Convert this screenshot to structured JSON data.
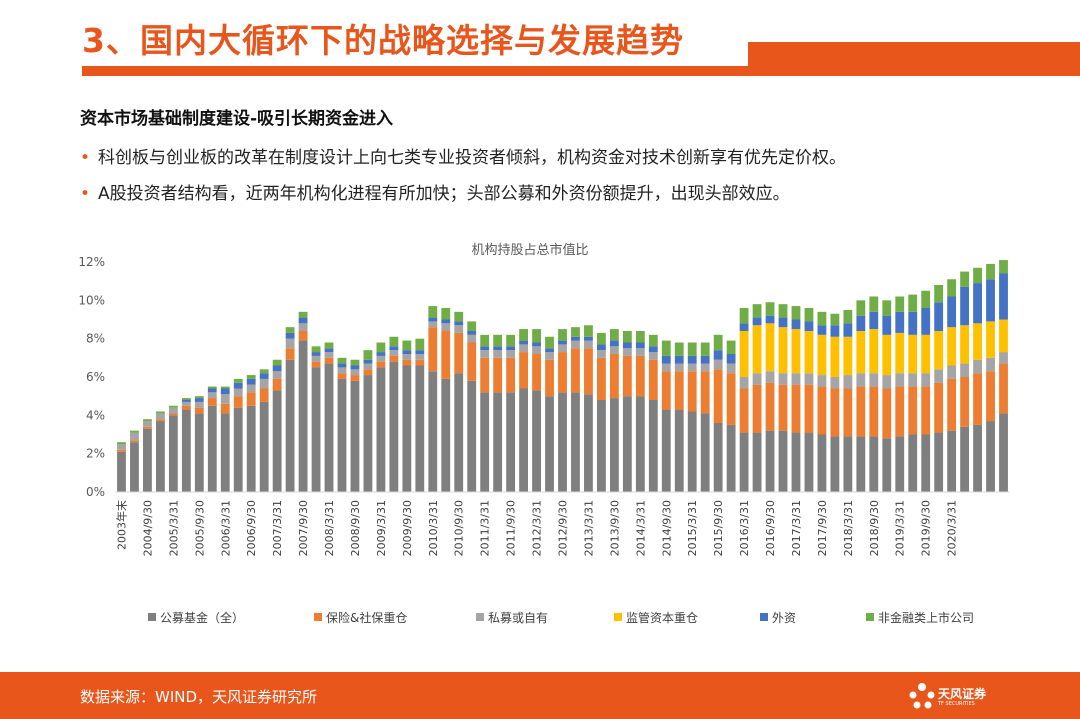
{
  "header": {
    "title": "3、国内大循环下的战略选择与发展趋势"
  },
  "section": {
    "subhead": "资本市场基础制度建设-吸引长期资金进入",
    "bullets": [
      "科创板与创业板的改革在制度设计上向七类专业投资者倾斜，机构资金对技术创新享有优先定价权。",
      "A股投资者结构看，近两年机构化进程有所加快；头部公募和外资份额提升，出现头部效应。"
    ]
  },
  "chart_data": {
    "type": "bar",
    "stacked": true,
    "title": "机构持股占总市值比",
    "ylim": [
      0,
      12
    ],
    "yticks": [
      "0%",
      "2%",
      "4%",
      "6%",
      "8%",
      "10%",
      "12%"
    ],
    "legend_position": "bottom",
    "x_tick_labels": [
      "2003年末",
      "2004/9/30",
      "2005/3/31",
      "2005/9/30",
      "2006/3/31",
      "2006/9/30",
      "2007/3/31",
      "2007/9/30",
      "2008/3/31",
      "2008/9/30",
      "2009/3/31",
      "2009/9/30",
      "2010/3/31",
      "2010/9/30",
      "2011/3/31",
      "2011/9/30",
      "2012/3/31",
      "2012/9/30",
      "2013/3/31",
      "2013/9/30",
      "2014/3/31",
      "2014/9/30",
      "2015/3/31",
      "2015/9/30",
      "2016/3/31",
      "2016/9/30",
      "2017/3/31",
      "2017/9/30",
      "2018/3/31",
      "2018/9/30",
      "2019/3/31",
      "2019/9/30",
      "2020/3/31"
    ],
    "series": [
      {
        "name": "公募基金（全）",
        "color": "#7f7f7f",
        "values": [
          2.1,
          2.6,
          3.3,
          3.7,
          4.0,
          4.3,
          4.1,
          4.5,
          4.1,
          4.4,
          4.5,
          4.7,
          5.3,
          6.9,
          7.9,
          6.5,
          6.7,
          5.9,
          5.8,
          6.1,
          6.5,
          6.8,
          6.6,
          6.6,
          6.3,
          5.9,
          6.2,
          5.8,
          5.2,
          5.2,
          5.2,
          5.4,
          5.3,
          5.0,
          5.2,
          5.2,
          5.1,
          4.8,
          4.9,
          5.0,
          5.0,
          4.8,
          4.3,
          4.3,
          4.2,
          4.1,
          3.6,
          3.5,
          3.1,
          3.1,
          3.2,
          3.2,
          3.1,
          3.1,
          3.0,
          2.9,
          2.9,
          2.9,
          2.9,
          2.8,
          2.9,
          3.0,
          3.0,
          3.1,
          3.2,
          3.4,
          3.5,
          3.7,
          4.1
        ]
      },
      {
        "name": "保险&社保重仓",
        "color": "#ed7d31",
        "values": [
          0.1,
          0.1,
          0.1,
          0.1,
          0.1,
          0.2,
          0.3,
          0.4,
          0.5,
          0.6,
          0.7,
          0.7,
          0.6,
          0.6,
          0.5,
          0.3,
          0.3,
          0.3,
          0.3,
          0.3,
          0.3,
          0.3,
          0.3,
          0.3,
          2.3,
          2.5,
          2.1,
          2.0,
          1.8,
          1.8,
          1.8,
          1.9,
          1.9,
          1.9,
          2.1,
          2.3,
          2.4,
          2.2,
          2.3,
          2.1,
          2.1,
          2.1,
          2.0,
          2.0,
          2.1,
          2.2,
          2.8,
          2.7,
          2.3,
          2.5,
          2.5,
          2.4,
          2.5,
          2.5,
          2.5,
          2.5,
          2.5,
          2.6,
          2.6,
          2.6,
          2.6,
          2.5,
          2.5,
          2.6,
          2.7,
          2.6,
          2.7,
          2.6,
          2.6
        ]
      },
      {
        "name": "私募或自有",
        "color": "#a5a5a5",
        "values": [
          0.3,
          0.4,
          0.3,
          0.3,
          0.3,
          0.2,
          0.3,
          0.3,
          0.5,
          0.4,
          0.4,
          0.5,
          0.4,
          0.5,
          0.4,
          0.3,
          0.3,
          0.3,
          0.3,
          0.3,
          0.3,
          0.3,
          0.3,
          0.3,
          0.3,
          0.4,
          0.4,
          0.4,
          0.4,
          0.4,
          0.4,
          0.4,
          0.4,
          0.4,
          0.4,
          0.4,
          0.4,
          0.4,
          0.4,
          0.4,
          0.4,
          0.4,
          0.4,
          0.4,
          0.4,
          0.4,
          0.5,
          0.5,
          0.6,
          0.6,
          0.6,
          0.6,
          0.6,
          0.6,
          0.6,
          0.6,
          0.7,
          0.7,
          0.7,
          0.7,
          0.7,
          0.7,
          0.7,
          0.7,
          0.7,
          0.7,
          0.7,
          0.7,
          0.6
        ]
      },
      {
        "name": "监管资本重仓",
        "color": "#ffc000",
        "values": [
          0,
          0,
          0,
          0,
          0,
          0,
          0,
          0,
          0,
          0,
          0,
          0,
          0,
          0,
          0,
          0,
          0,
          0,
          0,
          0,
          0,
          0,
          0,
          0,
          0,
          0,
          0,
          0,
          0,
          0,
          0,
          0,
          0,
          0,
          0,
          0,
          0,
          0,
          0,
          0,
          0,
          0,
          0,
          0,
          0,
          0,
          0,
          0,
          2.4,
          2.5,
          2.5,
          2.4,
          2.3,
          2.2,
          2.1,
          2.1,
          2.0,
          2.2,
          2.3,
          2.1,
          2.1,
          2.0,
          2.0,
          2.0,
          2.0,
          2.0,
          1.9,
          1.9,
          1.7
        ]
      },
      {
        "name": "外资",
        "color": "#4472c4",
        "values": [
          0,
          0,
          0,
          0,
          0,
          0.1,
          0.2,
          0.2,
          0.3,
          0.3,
          0.3,
          0.3,
          0.3,
          0.3,
          0.3,
          0.2,
          0.2,
          0.2,
          0.2,
          0.2,
          0.2,
          0.2,
          0.2,
          0.2,
          0.2,
          0.2,
          0.2,
          0.2,
          0.2,
          0.2,
          0.2,
          0.2,
          0.2,
          0.2,
          0.2,
          0.2,
          0.2,
          0.3,
          0.3,
          0.3,
          0.3,
          0.3,
          0.4,
          0.4,
          0.4,
          0.4,
          0.5,
          0.5,
          0.4,
          0.4,
          0.4,
          0.5,
          0.5,
          0.5,
          0.5,
          0.6,
          0.7,
          0.8,
          0.9,
          1.0,
          1.1,
          1.2,
          1.4,
          1.5,
          1.6,
          2.0,
          2.1,
          2.2,
          2.4
        ]
      },
      {
        "name": "非金融类上市公司",
        "color": "#70ad47",
        "values": [
          0.1,
          0.1,
          0.1,
          0.1,
          0.1,
          0.1,
          0.1,
          0.1,
          0.1,
          0.2,
          0.2,
          0.2,
          0.3,
          0.3,
          0.3,
          0.3,
          0.3,
          0.3,
          0.3,
          0.5,
          0.5,
          0.5,
          0.5,
          0.6,
          0.6,
          0.6,
          0.5,
          0.5,
          0.6,
          0.6,
          0.6,
          0.6,
          0.7,
          0.6,
          0.6,
          0.5,
          0.6,
          0.6,
          0.6,
          0.6,
          0.6,
          0.6,
          0.8,
          0.7,
          0.7,
          0.7,
          0.8,
          0.7,
          0.8,
          0.7,
          0.7,
          0.7,
          0.7,
          0.7,
          0.7,
          0.6,
          0.7,
          0.8,
          0.8,
          0.8,
          0.8,
          0.9,
          0.9,
          0.9,
          0.9,
          0.8,
          0.8,
          0.8,
          0.7
        ]
      }
    ]
  },
  "footer": {
    "source": "数据来源：WIND，天风证券研究所",
    "logo_text": "天风证券",
    "logo_sub": "TF SECURITIES"
  }
}
